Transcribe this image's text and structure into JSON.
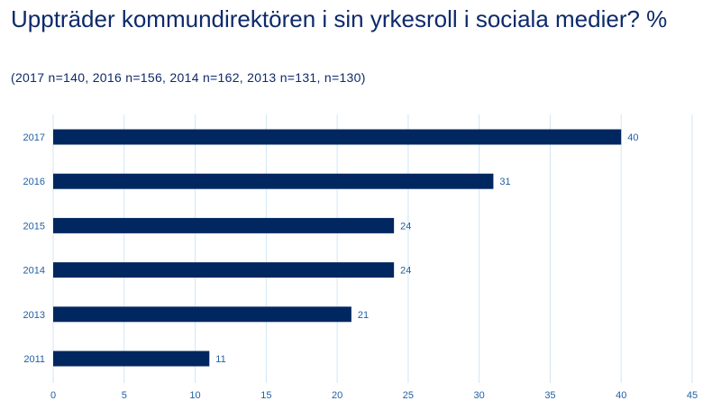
{
  "title": "Uppträder kommundirektören i sin yrkesroll i sociala medier? %",
  "subtitle": "(2017 n=140, 2016 n=156, 2014 n=162, 2013 n=131, n=130)",
  "colors": {
    "bar": "#002760",
    "grid": "#cfe6f5",
    "tick_text": "#1f5fa6",
    "title": "#0d2a6b"
  },
  "chart_data": {
    "type": "bar",
    "orientation": "horizontal",
    "categories": [
      "2017",
      "2016",
      "2015",
      "2014",
      "2013",
      "2011"
    ],
    "values": [
      40,
      31,
      24,
      24,
      21,
      11
    ],
    "xlim": [
      0,
      45
    ],
    "xticks": [
      0,
      5,
      10,
      15,
      20,
      25,
      30,
      35,
      40,
      45
    ],
    "grid": true,
    "data_labels": [
      "40",
      "31",
      "24",
      "24",
      "21",
      "11"
    ]
  }
}
